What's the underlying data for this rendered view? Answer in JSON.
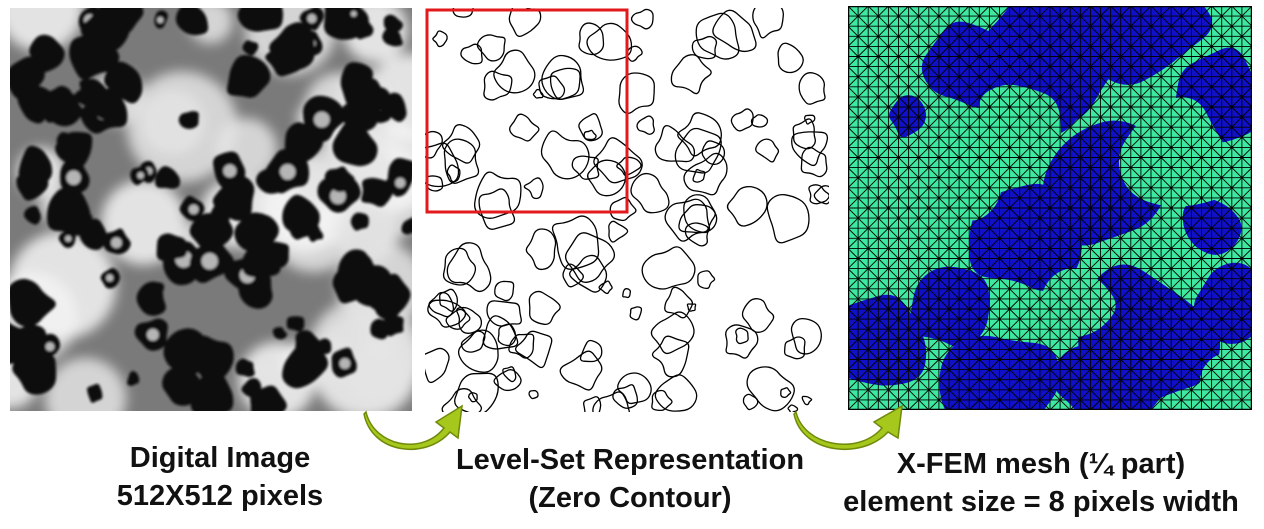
{
  "panels": {
    "digital_image": {
      "caption_line1": "Digital Image",
      "caption_line2": "512X512 pixels"
    },
    "level_set": {
      "caption_line1": "Level-Set Representation",
      "caption_line2": "(Zero Contour)",
      "highlight_color": "#e31a1c"
    },
    "xfem_mesh": {
      "caption_line1": "X-FEM mesh (¼ part)",
      "caption_line2": "element size = 8 pixels width",
      "matrix_color": "#3ee8a0",
      "inclusion_color": "#1010c8",
      "mesh_line_color": "#000000"
    }
  },
  "arrows": {
    "color": "#a6c81c",
    "icon": "curved-arrow-icon"
  }
}
